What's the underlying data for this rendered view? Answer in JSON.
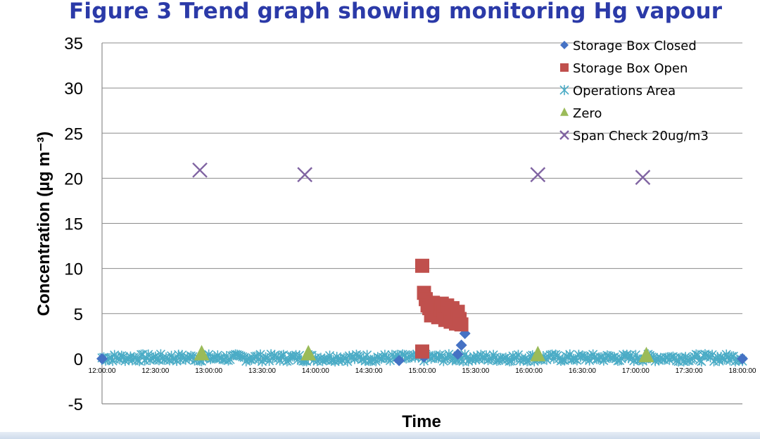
{
  "chart_data": {
    "type": "scatter",
    "title": "Figure 3 Trend graph showing monitoring Hg vapour",
    "xlabel": "Time",
    "ylabel": "Concentration (µg m⁻³)",
    "ylim": [
      -5,
      35
    ],
    "yticks": [
      -5,
      0,
      5,
      10,
      15,
      20,
      25,
      30,
      35
    ],
    "xlim": [
      "12:00:00",
      "18:00:00"
    ],
    "xticks": [
      "12:00:00",
      "12:30:00",
      "13:00:00",
      "13:30:00",
      "14:00:00",
      "14:30:00",
      "15:00:00",
      "15:30:00",
      "16:00:00",
      "16:30:00",
      "17:00:00",
      "17:30:00",
      "18:00:00"
    ],
    "grid": "horizontal",
    "legend_position": "top-right",
    "series": [
      {
        "name": "Storage Box Closed",
        "marker": "diamond",
        "color": "#4572c4",
        "x": [
          "12:00:00",
          "14:47:00",
          "15:01:00",
          "15:20:00",
          "15:22:00",
          "15:24:00",
          "18:00:00"
        ],
        "y": [
          0,
          -0.2,
          0.2,
          0.5,
          1.5,
          2.8,
          0
        ]
      },
      {
        "name": "Storage Box Open",
        "marker": "square",
        "color": "#c0504d",
        "x": [
          "15:00:00",
          "15:00:00",
          "15:01:00",
          "15:02:00",
          "15:03:00",
          "15:04:00",
          "15:05:00",
          "15:06:00",
          "15:07:00",
          "15:08:00",
          "15:09:00",
          "15:10:00",
          "15:11:00",
          "15:12:00",
          "15:13:00",
          "15:14:00",
          "15:15:00",
          "15:16:00",
          "15:17:00",
          "15:18:00",
          "15:19:00",
          "15:20:00",
          "15:21:00",
          "15:22:00"
        ],
        "y": [
          10.3,
          0.8,
          7.3,
          6.6,
          5.9,
          5.6,
          4.8,
          6.2,
          5.8,
          6.0,
          4.6,
          5.5,
          6.1,
          5.2,
          4.3,
          5.9,
          5.0,
          4.1,
          5.6,
          4.8,
          3.9,
          5.2,
          4.4,
          3.8
        ]
      },
      {
        "name": "Operations Area",
        "marker": "asterisk",
        "color": "#4bacc6",
        "x_range": [
          "12:00:00",
          "18:00:00"
        ],
        "interval_minutes": 1,
        "approx_value": 0.1,
        "noise": 0.4
      },
      {
        "name": "Zero",
        "marker": "triangle",
        "color": "#9bbb59",
        "x": [
          "12:56:00",
          "13:56:00",
          "16:05:00",
          "17:06:00"
        ],
        "y": [
          0.5,
          0.5,
          0.4,
          0.3
        ]
      },
      {
        "name": "Span Check 20ug/m3",
        "marker": "x",
        "color": "#8064a2",
        "x": [
          "12:55:00",
          "13:54:00",
          "16:05:00",
          "17:04:00"
        ],
        "y": [
          20.9,
          20.4,
          20.4,
          20.1
        ]
      }
    ]
  }
}
